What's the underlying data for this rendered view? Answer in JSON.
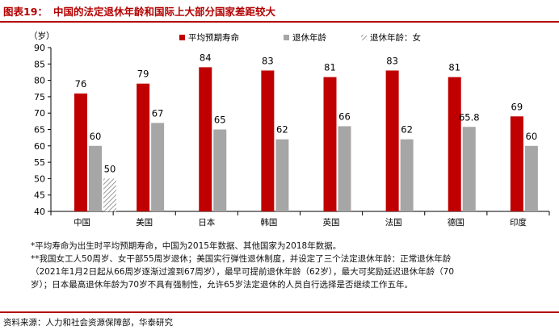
{
  "figure": {
    "label": "图表19：",
    "title": "中国的法定退休年龄和国际上大部分国家差距较大"
  },
  "chart_data": {
    "type": "bar",
    "title": "",
    "ylabel": "（岁）",
    "xlabel": "",
    "ylim": [
      40,
      90
    ],
    "yticks": [
      40,
      45,
      50,
      55,
      60,
      65,
      70,
      75,
      80,
      85,
      90
    ],
    "grid": false,
    "legend": "top",
    "categories": [
      "中国",
      "美国",
      "日本",
      "韩国",
      "英国",
      "法国",
      "德国",
      "印度"
    ],
    "series": [
      {
        "name": "平均预期寿命",
        "color": "#c00000",
        "pattern": "solid",
        "values": [
          76,
          79,
          84,
          83,
          81,
          83,
          81,
          69
        ],
        "labels": [
          "76",
          "79",
          "84",
          "83",
          "81",
          "83",
          "81",
          "69"
        ]
      },
      {
        "name": "退休年龄",
        "color": "#a6a6a6",
        "pattern": "solid",
        "values": [
          60,
          67,
          65,
          62,
          66,
          62,
          65.8,
          60
        ],
        "labels": [
          "60",
          "67",
          "65",
          "62",
          "66",
          "62",
          "65.8",
          "60"
        ]
      },
      {
        "name": "退休年龄：女",
        "color": "#a6a6a6",
        "pattern": "hatched",
        "values": [
          50,
          null,
          null,
          null,
          null,
          null,
          null,
          null
        ],
        "labels": [
          "50",
          "",
          "",
          "",
          "",
          "",
          "",
          ""
        ]
      }
    ]
  },
  "notes": [
    "*平均寿命为出生时平均预期寿命，中国为2015年数据、其他国家为2018年数据。",
    "**我国女工人50周岁、女干部55周岁退休；美国实行弹性退休制度，并设定了三个法定退休年龄：正常退休年龄",
    "（2021年1月2日起从66周岁逐渐过渡到67周岁），最早可提前退休年龄（62岁），最大可奖励延迟退休年龄（70",
    "岁）；日本最高退休年龄为70岁不具有强制性，允许65岁法定退休的人员自行选择是否继续工作五年。"
  ],
  "source": "资料来源：人力和社会资源保障部，华泰研究"
}
